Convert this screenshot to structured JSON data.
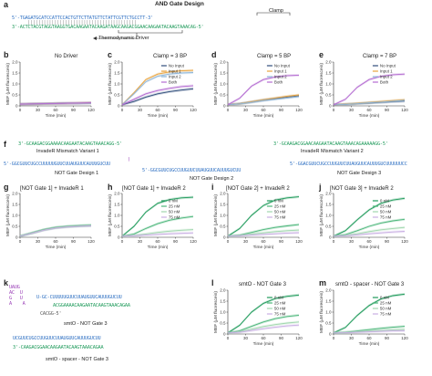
{
  "panel_a": {
    "label": "a",
    "title": "AND Gate Design",
    "clamp_label": "Clamp",
    "top_strand": "5'-TGAGATGCATCCATTCCACTGTTCTTATGTTCTATTCGTTCTGCCTT-3'",
    "bottom_strand": "3'-ACTCTACGTAGGTAAGGTGACAAGAATACAAGATAAGCAAGACGGAACAAGAATACAAGTAAACAG-5'",
    "driver_label": "Thermodynamic Driver"
  },
  "axis": {
    "xlabel": "Time (min)",
    "ylabel": "MEF (μM fluorescein)",
    "xticks": [
      "0",
      "30",
      "60",
      "90",
      "120"
    ],
    "yticks": [
      "0",
      "0.5",
      "1.0",
      "1.5",
      "2.0"
    ]
  },
  "legend_inputs": [
    "No Input",
    "Input 1",
    "Input 2",
    "Both"
  ],
  "legend_conc": [
    "0 nM",
    "25 nM",
    "50 nM",
    "75 nM"
  ],
  "panels_row1": [
    {
      "label": "b",
      "title": "No Driver"
    },
    {
      "label": "c",
      "title": "Clamp = 3 BP"
    },
    {
      "label": "d",
      "title": "Clamp = 5 BP"
    },
    {
      "label": "e",
      "title": "Clamp = 7 BP"
    }
  ],
  "panel_f": {
    "label": "f",
    "invader1_seq": "3'-GCAAGACGGAAAACAAGAATACAAGTAAACAGG-5'",
    "invader1_name": "InvadeR Mismatch Variant 1",
    "invader2_seq": "3'-GCAAGACGGAACAAGAATACAAGTAAACAGAAAAAGG-5'",
    "invader2_name": "InvadeR Mismatch Variant 2",
    "not1_seq": "5'-GGCGUUCUGCCUUUUUGUUCUUAUGUUCAUUUGUCUU",
    "not1_name": "NOT Gate Design 1",
    "not2_seq": "5'-GGCGUUCUGCCUUGUUCUUAUGUUCAUUUGUCUU",
    "not2_name": "NOT Gate Design 2",
    "not3_seq": "5'-GGACGUUCUGCCUUGUUCUUAUGUUCAUUUGUCUUUUUUCC",
    "not3_name": "NOT Gate Design 3"
  },
  "panels_row2": [
    {
      "label": "g",
      "title": "[NOT Gate 1] + InvadeR 1"
    },
    {
      "label": "h",
      "title": "[NOT Gate 1] + InvadeR 2"
    },
    {
      "label": "i",
      "title": "[NOT Gate 2] + InvadeR 2"
    },
    {
      "label": "j",
      "title": "[NOT Gate 3] + InvadeR 2"
    }
  ],
  "panel_k": {
    "label": "k",
    "seq1_top": "U-GC-CUUUUUGUUCUUAUGUUCAUUUGUCUU",
    "seq1_bottom": "ACGGAAAACAAGAATACAAGTAAACAGAA",
    "seq1_tail": "CACGG-5'",
    "name1": "smtO - NOT Gate 3",
    "seq2_top": "UCGUUCUGCCUUGUUCUUAUGUUCAUUUGUCUU",
    "seq2_bottom": "3'-CAAGACGGAACAAGAATACAAGTAAACAGAA",
    "name2": "smtO - spacer - NOT Gate 3"
  },
  "panels_row3": [
    {
      "label": "l",
      "title": "smtO - NOT Gate 3"
    },
    {
      "label": "m",
      "title": "smtO - spacer - NOT Gate 3"
    }
  ],
  "chart_data": [
    {
      "type": "line",
      "title": "No Driver",
      "xlim": [
        0,
        120
      ],
      "ylim": [
        0,
        2.0
      ],
      "x": [
        0,
        20,
        40,
        60,
        80,
        100,
        120
      ],
      "series": [
        {
          "name": "No Input",
          "values": [
            0.08,
            0.09,
            0.1,
            0.11,
            0.12,
            0.12,
            0.13
          ]
        },
        {
          "name": "Input 1",
          "values": [
            0.08,
            0.09,
            0.1,
            0.11,
            0.12,
            0.13,
            0.14
          ]
        },
        {
          "name": "Input 2",
          "values": [
            0.08,
            0.09,
            0.1,
            0.11,
            0.12,
            0.12,
            0.13
          ]
        },
        {
          "name": "Both",
          "values": [
            0.08,
            0.09,
            0.1,
            0.11,
            0.12,
            0.13,
            0.14
          ]
        }
      ]
    },
    {
      "type": "line",
      "title": "Clamp = 3 BP",
      "xlim": [
        0,
        120
      ],
      "ylim": [
        0,
        2.0
      ],
      "x": [
        0,
        20,
        40,
        60,
        80,
        100,
        120
      ],
      "series": [
        {
          "name": "No Input",
          "values": [
            0.05,
            0.2,
            0.4,
            0.55,
            0.65,
            0.72,
            0.78
          ]
        },
        {
          "name": "Input 1",
          "values": [
            0.05,
            0.6,
            1.2,
            1.45,
            1.55,
            1.6,
            1.62
          ]
        },
        {
          "name": "Input 2",
          "values": [
            0.05,
            0.55,
            1.1,
            1.35,
            1.45,
            1.5,
            1.52
          ]
        },
        {
          "name": "Both",
          "values": [
            0.05,
            0.3,
            0.55,
            0.7,
            0.8,
            0.88,
            0.92
          ]
        }
      ]
    },
    {
      "type": "line",
      "title": "Clamp = 5 BP",
      "xlim": [
        0,
        120
      ],
      "ylim": [
        0,
        2.0
      ],
      "x": [
        0,
        20,
        40,
        60,
        80,
        100,
        120
      ],
      "series": [
        {
          "name": "No Input",
          "values": [
            0.05,
            0.1,
            0.18,
            0.26,
            0.33,
            0.4,
            0.46
          ]
        },
        {
          "name": "Input 1",
          "values": [
            0.05,
            0.1,
            0.19,
            0.28,
            0.36,
            0.44,
            0.5
          ]
        },
        {
          "name": "Input 2",
          "values": [
            0.05,
            0.09,
            0.16,
            0.24,
            0.3,
            0.36,
            0.42
          ]
        },
        {
          "name": "Both",
          "values": [
            0.05,
            0.35,
            0.9,
            1.2,
            1.32,
            1.38,
            1.4
          ]
        }
      ]
    },
    {
      "type": "line",
      "title": "Clamp = 7 BP",
      "xlim": [
        0,
        120
      ],
      "ylim": [
        0,
        2.0
      ],
      "x": [
        0,
        20,
        40,
        60,
        80,
        100,
        120
      ],
      "series": [
        {
          "name": "No Input",
          "values": [
            0.05,
            0.07,
            0.1,
            0.13,
            0.16,
            0.19,
            0.22
          ]
        },
        {
          "name": "Input 1",
          "values": [
            0.05,
            0.08,
            0.12,
            0.16,
            0.2,
            0.24,
            0.28
          ]
        },
        {
          "name": "Input 2",
          "values": [
            0.05,
            0.07,
            0.1,
            0.14,
            0.17,
            0.21,
            0.25
          ]
        },
        {
          "name": "Both",
          "values": [
            0.05,
            0.3,
            0.85,
            1.2,
            1.35,
            1.42,
            1.45
          ]
        }
      ]
    },
    {
      "type": "line",
      "title": "[NOT Gate 1] + InvadeR 1",
      "xlim": [
        0,
        120
      ],
      "ylim": [
        0,
        2.0
      ],
      "x": [
        0,
        20,
        40,
        60,
        80,
        100,
        120
      ],
      "series": [
        {
          "name": "0 nM",
          "values": [
            0.05,
            0.2,
            0.35,
            0.45,
            0.5,
            0.53,
            0.55
          ]
        },
        {
          "name": "25 nM",
          "values": [
            0.05,
            0.19,
            0.34,
            0.44,
            0.49,
            0.52,
            0.54
          ]
        },
        {
          "name": "50 nM",
          "values": [
            0.05,
            0.19,
            0.33,
            0.43,
            0.48,
            0.51,
            0.53
          ]
        },
        {
          "name": "75 nM",
          "values": [
            0.05,
            0.18,
            0.32,
            0.42,
            0.47,
            0.5,
            0.52
          ]
        }
      ]
    },
    {
      "type": "line",
      "title": "[NOT Gate 1] + InvadeR 2",
      "xlim": [
        0,
        120
      ],
      "ylim": [
        0,
        2.0
      ],
      "x": [
        0,
        20,
        40,
        60,
        80,
        100,
        120
      ],
      "series": [
        {
          "name": "0 nM",
          "values": [
            0.05,
            0.5,
            1.15,
            1.55,
            1.72,
            1.8,
            1.83
          ]
        },
        {
          "name": "25 nM",
          "values": [
            0.05,
            0.15,
            0.4,
            0.62,
            0.78,
            0.88,
            0.95
          ]
        },
        {
          "name": "50 nM",
          "values": [
            0.05,
            0.08,
            0.15,
            0.22,
            0.28,
            0.32,
            0.35
          ]
        },
        {
          "name": "75 nM",
          "values": [
            0.05,
            0.07,
            0.1,
            0.13,
            0.16,
            0.18,
            0.2
          ]
        }
      ]
    },
    {
      "type": "line",
      "title": "[NOT Gate 2] + InvadeR 2",
      "xlim": [
        0,
        120
      ],
      "ylim": [
        0,
        2.0
      ],
      "x": [
        0,
        20,
        40,
        60,
        80,
        100,
        120
      ],
      "series": [
        {
          "name": "0 nM",
          "values": [
            0.05,
            0.4,
            1.0,
            1.45,
            1.7,
            1.8,
            1.85
          ]
        },
        {
          "name": "25 nM",
          "values": [
            0.05,
            0.1,
            0.22,
            0.35,
            0.45,
            0.52,
            0.58
          ]
        },
        {
          "name": "50 nM",
          "values": [
            0.05,
            0.08,
            0.14,
            0.2,
            0.26,
            0.3,
            0.33
          ]
        },
        {
          "name": "75 nM",
          "values": [
            0.05,
            0.07,
            0.1,
            0.13,
            0.16,
            0.19,
            0.21
          ]
        }
      ]
    },
    {
      "type": "line",
      "title": "[NOT Gate 3] + InvadeR 2",
      "xlim": [
        0,
        120
      ],
      "ylim": [
        0,
        2.0
      ],
      "x": [
        0,
        20,
        40,
        60,
        80,
        100,
        120
      ],
      "series": [
        {
          "name": "0 nM",
          "values": [
            0.05,
            0.3,
            0.8,
            1.25,
            1.55,
            1.7,
            1.78
          ]
        },
        {
          "name": "25 nM",
          "values": [
            0.05,
            0.12,
            0.3,
            0.5,
            0.65,
            0.75,
            0.82
          ]
        },
        {
          "name": "50 nM",
          "values": [
            0.05,
            0.08,
            0.16,
            0.26,
            0.34,
            0.4,
            0.45
          ]
        },
        {
          "name": "75 nM",
          "values": [
            0.05,
            0.07,
            0.11,
            0.16,
            0.2,
            0.24,
            0.27
          ]
        }
      ]
    },
    {
      "type": "line",
      "title": "smtO - NOT Gate 3",
      "xlim": [
        0,
        120
      ],
      "ylim": [
        0,
        2.0
      ],
      "x": [
        0,
        20,
        40,
        60,
        80,
        100,
        120
      ],
      "series": [
        {
          "name": "0 nM",
          "values": [
            0.05,
            0.4,
            1.0,
            1.4,
            1.62,
            1.72,
            1.78
          ]
        },
        {
          "name": "25 nM",
          "values": [
            0.05,
            0.15,
            0.35,
            0.55,
            0.7,
            0.8,
            0.86
          ]
        },
        {
          "name": "50 nM",
          "values": [
            0.05,
            0.1,
            0.22,
            0.34,
            0.43,
            0.5,
            0.55
          ]
        },
        {
          "name": "75 nM",
          "values": [
            0.05,
            0.08,
            0.16,
            0.24,
            0.31,
            0.37,
            0.41
          ]
        }
      ]
    },
    {
      "type": "line",
      "title": "smtO - spacer - NOT Gate 3",
      "xlim": [
        0,
        120
      ],
      "ylim": [
        0,
        2.0
      ],
      "x": [
        0,
        20,
        40,
        60,
        80,
        100,
        120
      ],
      "series": [
        {
          "name": "0 nM",
          "values": [
            0.05,
            0.3,
            0.85,
            1.3,
            1.6,
            1.75,
            1.82
          ]
        },
        {
          "name": "25 nM",
          "values": [
            0.05,
            0.08,
            0.14,
            0.2,
            0.26,
            0.31,
            0.35
          ]
        },
        {
          "name": "50 nM",
          "values": [
            0.05,
            0.07,
            0.1,
            0.13,
            0.16,
            0.19,
            0.21
          ]
        },
        {
          "name": "75 nM",
          "values": [
            0.05,
            0.06,
            0.08,
            0.1,
            0.12,
            0.14,
            0.15
          ]
        }
      ]
    }
  ],
  "colors": {
    "no_input": "#2e4d7a",
    "input1": "#e8a23b",
    "input2": "#8fb6d9",
    "both": "#b36ad1",
    "c0": "#1e9a5a",
    "c25": "#4cb67a",
    "c50": "#9fd6ad",
    "c75": "#c9aee3",
    "seq_green": "#1e9a5a",
    "seq_blue": "#2d6fc2",
    "seq_orange": "#e08a1e",
    "seq_purple": "#9a3fb7",
    "seq_red": "#c0392b",
    "seq_gray": "#555555"
  }
}
